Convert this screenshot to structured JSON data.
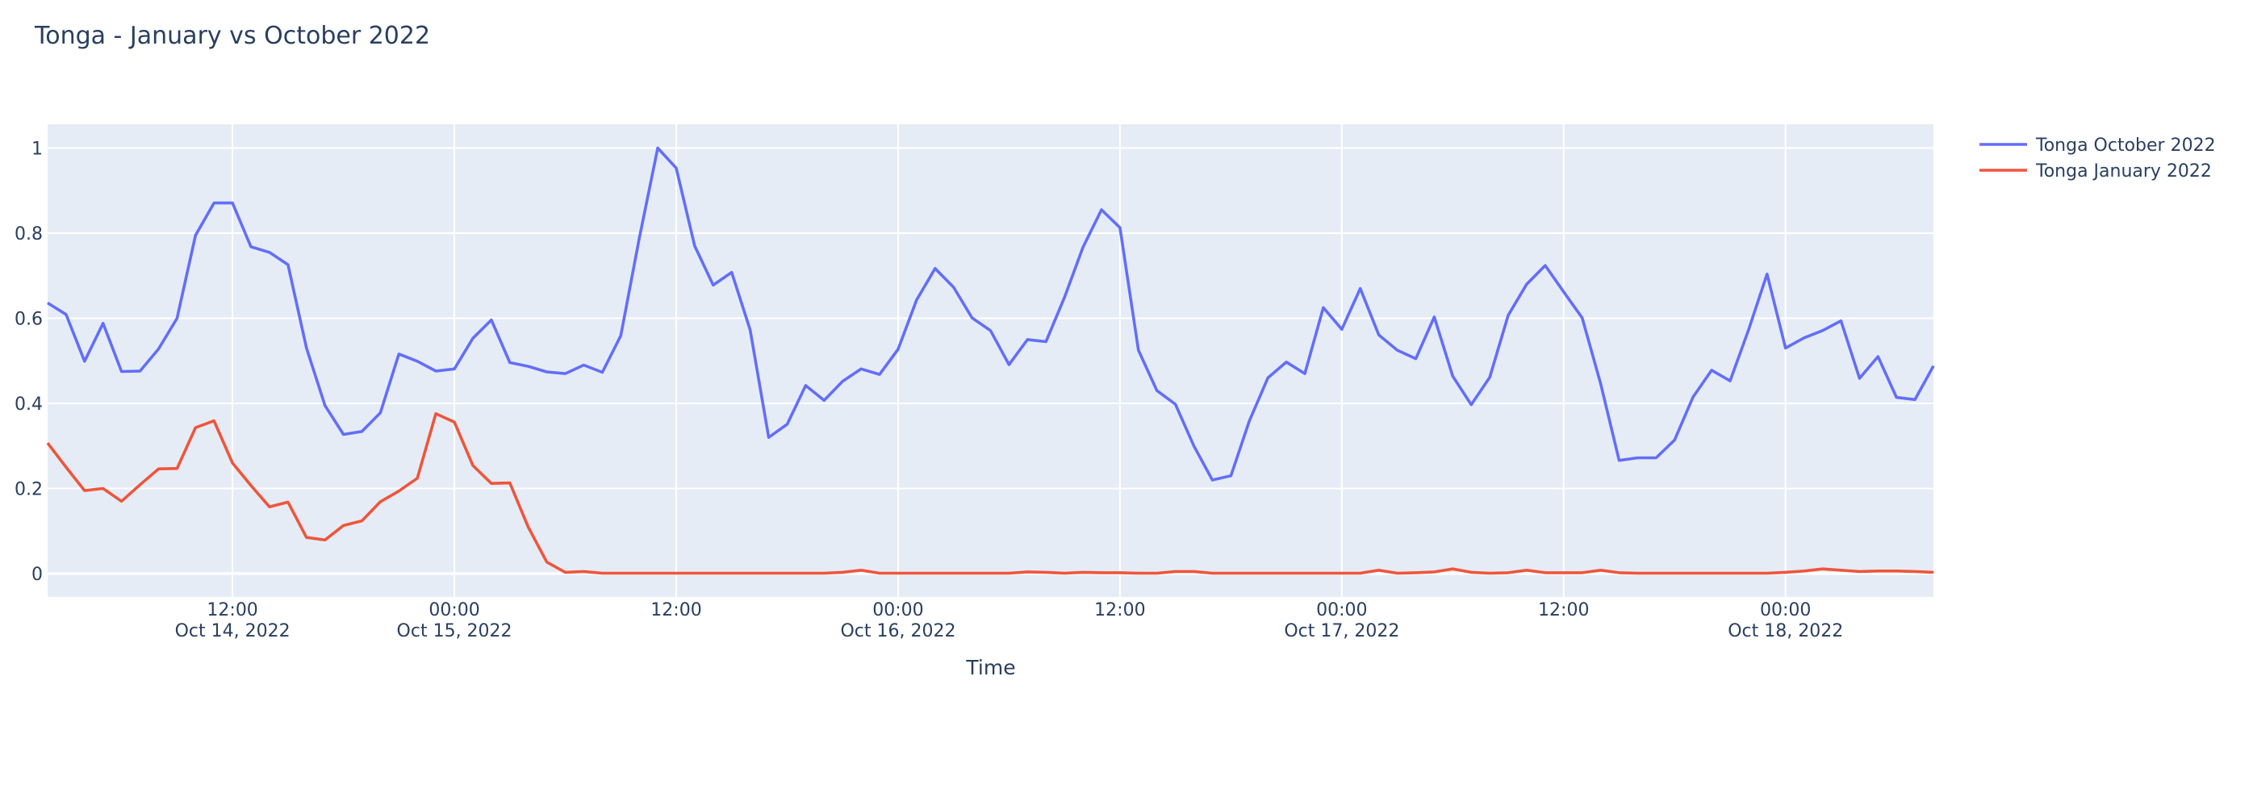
{
  "chart_data": {
    "type": "line",
    "title": "Tonga - January vs October 2022",
    "xlabel": "Time",
    "ylabel": "",
    "ylim": [
      -0.055,
      1.056
    ],
    "grid": true,
    "legend_position": "top-right, outside plot",
    "colors": {
      "plot_bg": "#E5ECF6",
      "grid": "#ffffff",
      "text": "#2a3f5f"
    },
    "y_ticks": [
      {
        "value": 0,
        "label": "0"
      },
      {
        "value": 0.2,
        "label": "0.2"
      },
      {
        "value": 0.4,
        "label": "0.4"
      },
      {
        "value": 0.6,
        "label": "0.6"
      },
      {
        "value": 0.8,
        "label": "0.8"
      },
      {
        "value": 1,
        "label": "1"
      }
    ],
    "x_ticks": [
      {
        "value": "2022-10-14 12:00",
        "time": "12:00",
        "date": "Oct 14, 2022"
      },
      {
        "value": "2022-10-15 00:00",
        "time": "00:00",
        "date": "Oct 15, 2022"
      },
      {
        "value": "2022-10-15 12:00",
        "time": "12:00",
        "date": ""
      },
      {
        "value": "2022-10-16 00:00",
        "time": "00:00",
        "date": "Oct 16, 2022"
      },
      {
        "value": "2022-10-16 12:00",
        "time": "12:00",
        "date": ""
      },
      {
        "value": "2022-10-17 00:00",
        "time": "00:00",
        "date": "Oct 17, 2022"
      },
      {
        "value": "2022-10-17 12:00",
        "time": "12:00",
        "date": ""
      },
      {
        "value": "2022-10-18 00:00",
        "time": "00:00",
        "date": "Oct 18, 2022"
      }
    ],
    "x": [
      "2022-10-14 02:00",
      "2022-10-14 03:00",
      "2022-10-14 04:00",
      "2022-10-14 05:00",
      "2022-10-14 06:00",
      "2022-10-14 07:00",
      "2022-10-14 08:00",
      "2022-10-14 09:00",
      "2022-10-14 10:00",
      "2022-10-14 11:00",
      "2022-10-14 12:00",
      "2022-10-14 13:00",
      "2022-10-14 14:00",
      "2022-10-14 15:00",
      "2022-10-14 16:00",
      "2022-10-14 17:00",
      "2022-10-14 18:00",
      "2022-10-14 19:00",
      "2022-10-14 20:00",
      "2022-10-14 21:00",
      "2022-10-14 22:00",
      "2022-10-14 23:00",
      "2022-10-15 00:00",
      "2022-10-15 01:00",
      "2022-10-15 02:00",
      "2022-10-15 03:00",
      "2022-10-15 04:00",
      "2022-10-15 05:00",
      "2022-10-15 06:00",
      "2022-10-15 07:00",
      "2022-10-15 08:00",
      "2022-10-15 09:00",
      "2022-10-15 10:00",
      "2022-10-15 11:00",
      "2022-10-15 12:00",
      "2022-10-15 13:00",
      "2022-10-15 14:00",
      "2022-10-15 15:00",
      "2022-10-15 16:00",
      "2022-10-15 17:00",
      "2022-10-15 18:00",
      "2022-10-15 19:00",
      "2022-10-15 20:00",
      "2022-10-15 21:00",
      "2022-10-15 22:00",
      "2022-10-15 23:00",
      "2022-10-16 00:00",
      "2022-10-16 01:00",
      "2022-10-16 02:00",
      "2022-10-16 03:00",
      "2022-10-16 04:00",
      "2022-10-16 05:00",
      "2022-10-16 06:00",
      "2022-10-16 07:00",
      "2022-10-16 08:00",
      "2022-10-16 09:00",
      "2022-10-16 10:00",
      "2022-10-16 11:00",
      "2022-10-16 12:00",
      "2022-10-16 13:00",
      "2022-10-16 14:00",
      "2022-10-16 15:00",
      "2022-10-16 16:00",
      "2022-10-16 17:00",
      "2022-10-16 18:00",
      "2022-10-16 19:00",
      "2022-10-16 20:00",
      "2022-10-16 21:00",
      "2022-10-16 22:00",
      "2022-10-16 23:00",
      "2022-10-17 00:00",
      "2022-10-17 01:00",
      "2022-10-17 02:00",
      "2022-10-17 03:00",
      "2022-10-17 04:00",
      "2022-10-17 05:00",
      "2022-10-17 06:00",
      "2022-10-17 07:00",
      "2022-10-17 08:00",
      "2022-10-17 09:00",
      "2022-10-17 10:00",
      "2022-10-17 11:00",
      "2022-10-17 12:00",
      "2022-10-17 13:00",
      "2022-10-17 14:00",
      "2022-10-17 15:00",
      "2022-10-17 16:00",
      "2022-10-17 17:00",
      "2022-10-17 18:00",
      "2022-10-17 19:00",
      "2022-10-17 20:00",
      "2022-10-17 21:00",
      "2022-10-17 22:00",
      "2022-10-17 23:00",
      "2022-10-18 00:00",
      "2022-10-18 01:00",
      "2022-10-18 02:00",
      "2022-10-18 03:00",
      "2022-10-18 04:00",
      "2022-10-18 05:00",
      "2022-10-18 06:00",
      "2022-10-18 07:00",
      "2022-10-18 08:00"
    ],
    "series": [
      {
        "name": "Tonga October 2022",
        "color": "#636efa",
        "values": [
          0.636,
          0.609,
          0.499,
          0.588,
          0.475,
          0.476,
          0.528,
          0.6,
          0.795,
          0.871,
          0.871,
          0.768,
          0.755,
          0.726,
          0.53,
          0.395,
          0.327,
          0.334,
          0.378,
          0.516,
          0.499,
          0.476,
          0.481,
          0.553,
          0.596,
          0.496,
          0.487,
          0.474,
          0.47,
          0.49,
          0.473,
          0.559,
          0.788,
          1.0,
          0.953,
          0.77,
          0.678,
          0.708,
          0.573,
          0.32,
          0.351,
          0.442,
          0.407,
          0.452,
          0.481,
          0.468,
          0.527,
          0.643,
          0.717,
          0.673,
          0.601,
          0.571,
          0.491,
          0.55,
          0.545,
          0.649,
          0.767,
          0.855,
          0.813,
          0.525,
          0.43,
          0.398,
          0.3,
          0.22,
          0.23,
          0.359,
          0.46,
          0.497,
          0.47,
          0.625,
          0.574,
          0.67,
          0.561,
          0.525,
          0.505,
          0.603,
          0.464,
          0.397,
          0.461,
          0.607,
          0.68,
          0.724,
          0.662,
          0.601,
          0.446,
          0.266,
          0.272,
          0.272,
          0.314,
          0.415,
          0.478,
          0.453,
          0.573,
          0.704,
          0.53,
          0.554,
          0.571,
          0.594,
          0.459,
          0.51,
          0.414,
          0.409,
          0.488
        ]
      },
      {
        "name": "Tonga January 2022",
        "color": "#EF553B",
        "values": [
          0.307,
          0.25,
          0.195,
          0.2,
          0.17,
          0.209,
          0.246,
          0.247,
          0.343,
          0.359,
          0.26,
          0.207,
          0.157,
          0.168,
          0.085,
          0.079,
          0.113,
          0.124,
          0.169,
          0.194,
          0.224,
          0.376,
          0.356,
          0.254,
          0.212,
          0.213,
          0.109,
          0.027,
          0.003,
          0.005,
          0.001,
          0.001,
          0.001,
          0.001,
          0.001,
          0.001,
          0.001,
          0.001,
          0.001,
          0.001,
          0.001,
          0.001,
          0.001,
          0.003,
          0.008,
          0.001,
          0.001,
          0.001,
          0.001,
          0.001,
          0.001,
          0.001,
          0.001,
          0.004,
          0.003,
          0.001,
          0.003,
          0.002,
          0.002,
          0.001,
          0.001,
          0.005,
          0.005,
          0.001,
          0.001,
          0.001,
          0.001,
          0.001,
          0.001,
          0.001,
          0.001,
          0.001,
          0.008,
          0.001,
          0.002,
          0.004,
          0.011,
          0.003,
          0.001,
          0.002,
          0.008,
          0.002,
          0.002,
          0.002,
          0.008,
          0.002,
          0.001,
          0.001,
          0.001,
          0.001,
          0.001,
          0.001,
          0.001,
          0.001,
          0.003,
          0.006,
          0.011,
          0.008,
          0.005,
          0.006,
          0.006,
          0.005,
          0.003
        ]
      }
    ]
  }
}
